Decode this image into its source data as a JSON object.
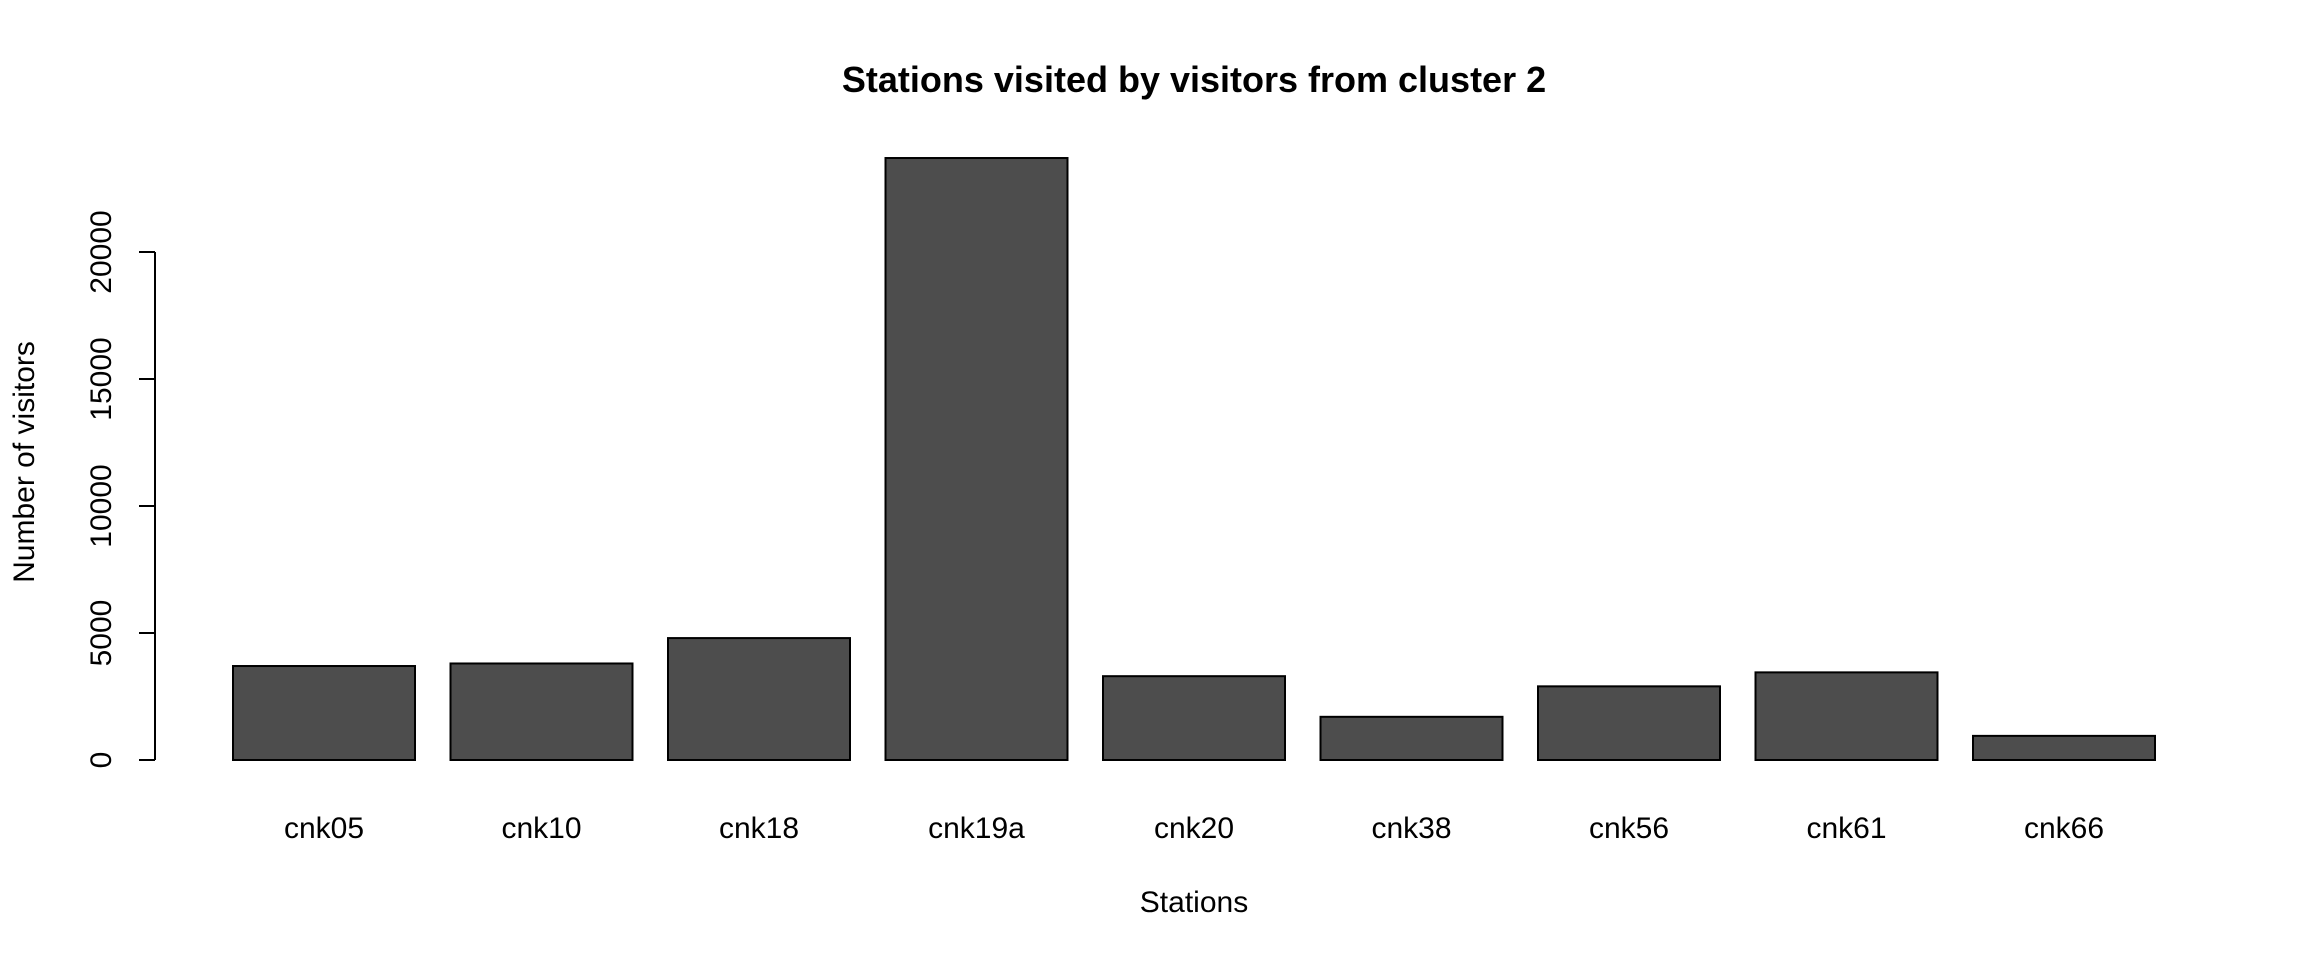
{
  "chart_data": {
    "type": "bar",
    "title": "Stations visited by visitors from cluster 2",
    "xlabel": "Stations",
    "ylabel": "Number of visitors",
    "categories": [
      "cnk05",
      "cnk10",
      "cnk18",
      "cnk19a",
      "cnk20",
      "cnk38",
      "cnk56",
      "cnk61",
      "cnk66"
    ],
    "values": [
      3700,
      3800,
      4800,
      23700,
      3300,
      1700,
      2900,
      3450,
      950
    ],
    "y_ticks": [
      0,
      5000,
      10000,
      15000,
      20000
    ],
    "ylim": [
      0,
      23700
    ],
    "bar_color": "#4d4d4d",
    "grid": false,
    "legend": "none"
  }
}
